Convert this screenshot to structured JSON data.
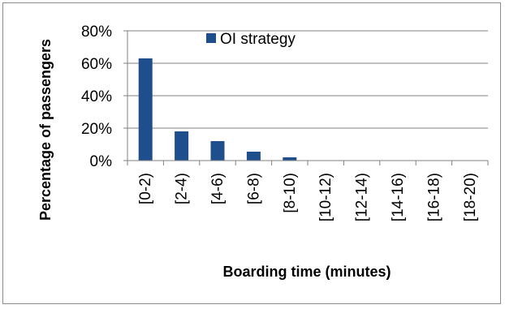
{
  "chart_data": {
    "type": "bar",
    "categories": [
      "[0-2)",
      "[2-4)",
      "[4-6)",
      "[6-8)",
      "[8-10)",
      "[10-12)",
      "[12-14)",
      "[14-16)",
      "[16-18)",
      "[18-20)"
    ],
    "series": [
      {
        "name": "OI strategy",
        "values": [
          63,
          18,
          12,
          5.5,
          2,
          0,
          0,
          0,
          0,
          0
        ]
      }
    ],
    "xlabel": "Boarding time (minutes)",
    "ylabel": "Percentage of passengers",
    "ylim": [
      0,
      80
    ],
    "yticks": [
      "0%",
      "20%",
      "40%",
      "60%",
      "80%"
    ],
    "grid": true,
    "legend_position": "top",
    "colors": {
      "bar": "#1F4E8C",
      "grid": "#808080",
      "axis": "#808080"
    }
  }
}
